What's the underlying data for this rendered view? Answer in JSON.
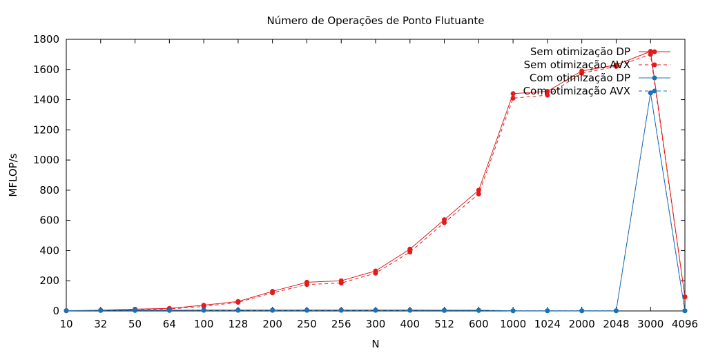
{
  "chart_data": {
    "type": "line",
    "title": "Número de Operações de Ponto Flutuante",
    "xlabel": "N",
    "ylabel": "MFLOP/s",
    "categories": [
      "10",
      "32",
      "50",
      "64",
      "100",
      "128",
      "200",
      "250",
      "256",
      "300",
      "400",
      "512",
      "600",
      "1000",
      "1024",
      "2000",
      "2048",
      "3000",
      "4096"
    ],
    "ylim": [
      0,
      1800
    ],
    "yticks": [
      "0",
      "200",
      "400",
      "600",
      "800",
      "1000",
      "1200",
      "1400",
      "1600",
      "1800"
    ],
    "legend_position": "top-right",
    "grid": false,
    "series": [
      {
        "name": "Sem otimização DP",
        "color": "#e41a1c",
        "dash": "solid",
        "values": [
          1,
          5,
          12,
          17,
          38,
          63,
          130,
          190,
          200,
          265,
          410,
          605,
          800,
          1440,
          1455,
          1590,
          1630,
          1720,
          93
        ]
      },
      {
        "name": "Sem otimização AVX",
        "color": "#e41a1c",
        "dash": "dashed",
        "values": [
          1,
          4,
          10,
          13,
          30,
          57,
          120,
          175,
          185,
          250,
          390,
          585,
          775,
          1410,
          1430,
          1575,
          1620,
          1700,
          93
        ]
      },
      {
        "name": "Com otimização DP",
        "color": "#1f6fb4",
        "dash": "solid",
        "values": [
          2,
          4,
          5,
          5,
          6,
          6,
          6,
          6,
          6,
          6,
          6,
          5,
          5,
          1,
          1,
          1,
          1,
          1445,
          1
        ]
      },
      {
        "name": "Com otimização AVX",
        "color": "#1f6fb4",
        "dash": "dashed",
        "values": [
          2,
          3,
          3,
          3,
          4,
          4,
          4,
          4,
          4,
          4,
          4,
          3,
          3,
          1,
          1,
          1,
          1,
          1445,
          1
        ]
      }
    ]
  }
}
